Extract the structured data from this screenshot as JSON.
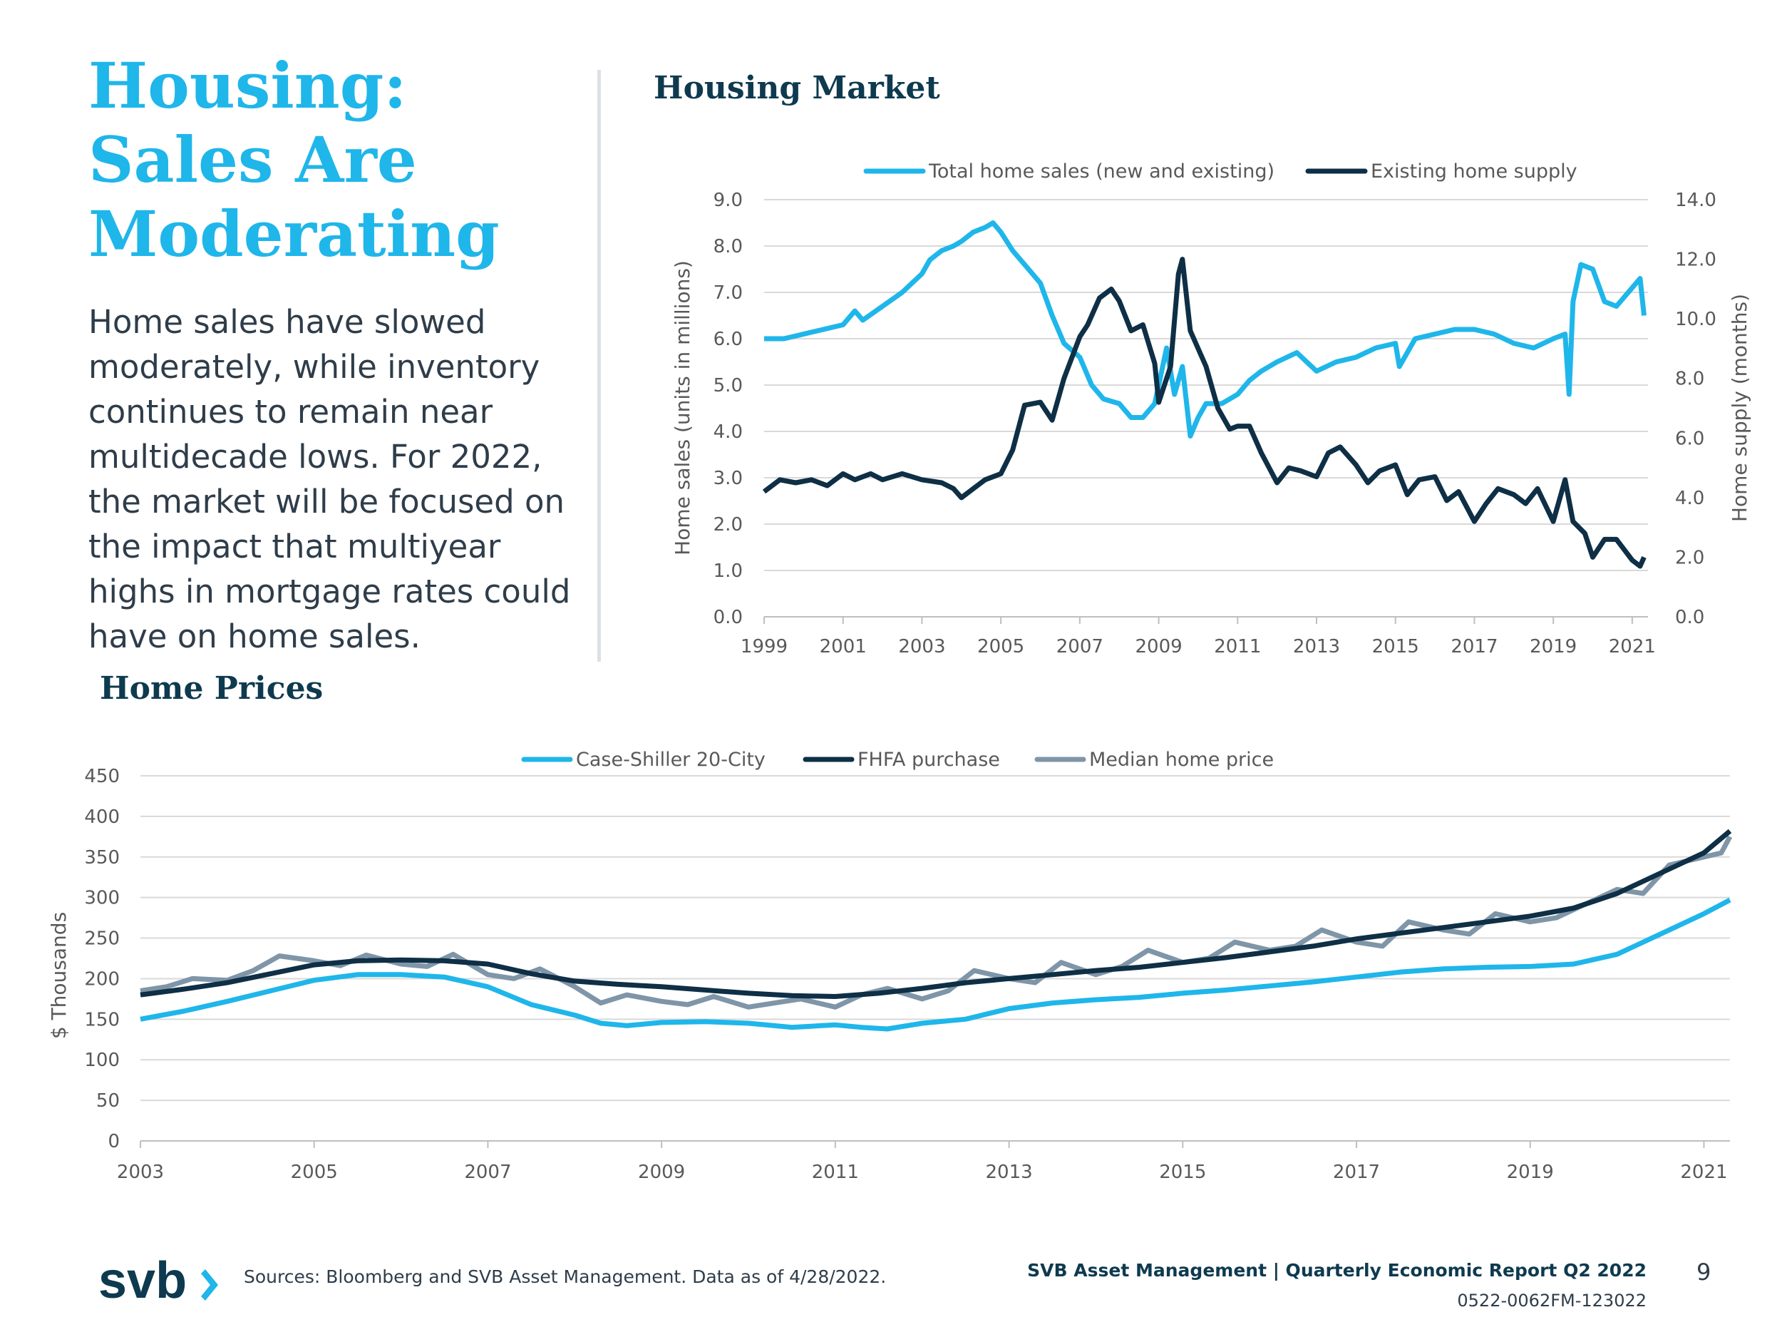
{
  "headline": {
    "line1": "Housing:",
    "line2": "Sales Are",
    "line3": "Moderating"
  },
  "body": "Home sales have slowed moderately, while inventory continues to remain near multidecade lows. For 2022, the market will be focused on the impact that multiyear highs in mortgage rates could have on home sales.",
  "housing_market_title": "Housing Market",
  "home_prices_title": "Home Prices",
  "footer": {
    "sources": "Sources: Bloomberg and SVB Asset Management. Data as of 4/28/2022.",
    "report": "SVB Asset Management | Quarterly Economic Report Q2 2022",
    "code": "0522-0062FM-123022",
    "page": "9",
    "logo_text": "svb"
  },
  "colors": {
    "light": "#1fb6ea",
    "dark": "#0e2f45",
    "gray": "#7f95a8",
    "grid": "#d9d9d9",
    "axis_text": "#595959"
  },
  "chart_data": [
    {
      "type": "line",
      "title": "Housing Market",
      "xlabel": "",
      "ylabel": "Home sales (units in millions)",
      "y2label": "Home supply (months)",
      "xlim": [
        1999,
        2021.4
      ],
      "ylim": [
        0,
        9
      ],
      "y2lim": [
        0,
        14
      ],
      "xticks": [
        "1999",
        "2001",
        "2003",
        "2005",
        "2007",
        "2009",
        "2011",
        "2013",
        "2015",
        "2017",
        "2019",
        "2021"
      ],
      "yticks": [
        "0.0",
        "1.0",
        "2.0",
        "3.0",
        "4.0",
        "5.0",
        "6.0",
        "7.0",
        "8.0",
        "9.0"
      ],
      "y2ticks": [
        "0.0",
        "2.0",
        "4.0",
        "6.0",
        "8.0",
        "10.0",
        "12.0",
        "14.0"
      ],
      "legend_position": "top",
      "series": [
        {
          "name": "Total home sales (new and existing)",
          "axis": "left",
          "color": "#1fb6ea",
          "x": [
            1999,
            1999.5,
            2000,
            2000.5,
            2001,
            2001.3,
            2001.5,
            2002,
            2002.5,
            2003,
            2003.2,
            2003.5,
            2003.8,
            2004,
            2004.3,
            2004.6,
            2004.8,
            2005,
            2005.3,
            2005.6,
            2006,
            2006.3,
            2006.6,
            2007,
            2007.3,
            2007.6,
            2008,
            2008.3,
            2008.6,
            2008.9,
            2009,
            2009.2,
            2009.4,
            2009.6,
            2009.8,
            2010,
            2010.2,
            2010.4,
            2010.6,
            2011,
            2011.3,
            2011.6,
            2012,
            2012.5,
            2013,
            2013.5,
            2014,
            2014.5,
            2015,
            2015.1,
            2015.5,
            2016,
            2016.5,
            2017,
            2017.5,
            2018,
            2018.5,
            2019,
            2019.3,
            2019.4,
            2019.5,
            2019.7,
            2020,
            2020.3,
            2020.6,
            2021,
            2021.2,
            2021.3
          ],
          "values": [
            6.0,
            6.0,
            6.1,
            6.2,
            6.3,
            6.6,
            6.4,
            6.7,
            7.0,
            7.4,
            7.7,
            7.9,
            8.0,
            8.1,
            8.3,
            8.4,
            8.5,
            8.3,
            7.9,
            7.6,
            7.2,
            6.5,
            5.9,
            5.6,
            5.0,
            4.7,
            4.6,
            4.3,
            4.3,
            4.6,
            5.0,
            5.8,
            4.8,
            5.4,
            3.9,
            4.3,
            4.6,
            4.6,
            4.6,
            4.8,
            5.1,
            5.3,
            5.5,
            5.7,
            5.3,
            5.5,
            5.6,
            5.8,
            5.9,
            5.4,
            6.0,
            6.1,
            6.2,
            6.2,
            6.1,
            5.9,
            5.8,
            6.0,
            6.1,
            4.8,
            6.8,
            7.6,
            7.5,
            6.8,
            6.7,
            7.1,
            7.3,
            6.5
          ]
        },
        {
          "name": "Existing home supply",
          "axis": "right",
          "color": "#0e2f45",
          "x": [
            1999,
            1999.4,
            1999.8,
            2000.2,
            2000.6,
            2001,
            2001.3,
            2001.7,
            2002,
            2002.5,
            2003,
            2003.5,
            2003.8,
            2004,
            2004.3,
            2004.6,
            2005,
            2005.3,
            2005.6,
            2006,
            2006.3,
            2006.6,
            2007,
            2007.2,
            2007.5,
            2007.8,
            2008,
            2008.3,
            2008.6,
            2008.9,
            2009,
            2009.3,
            2009.5,
            2009.6,
            2009.8,
            2010,
            2010.2,
            2010.5,
            2010.8,
            2011,
            2011.3,
            2011.6,
            2012,
            2012.3,
            2012.6,
            2013,
            2013.3,
            2013.6,
            2014,
            2014.3,
            2014.6,
            2015,
            2015.3,
            2015.6,
            2016,
            2016.3,
            2016.6,
            2017,
            2017.3,
            2017.6,
            2018,
            2018.3,
            2018.6,
            2019,
            2019.3,
            2019.5,
            2019.8,
            2020,
            2020.3,
            2020.6,
            2021,
            2021.2,
            2021.3
          ],
          "values": [
            4.2,
            4.6,
            4.5,
            4.6,
            4.4,
            4.8,
            4.6,
            4.8,
            4.6,
            4.8,
            4.6,
            4.5,
            4.3,
            4.0,
            4.3,
            4.6,
            4.8,
            5.6,
            7.1,
            7.2,
            6.6,
            8.0,
            9.4,
            9.8,
            10.7,
            11.0,
            10.6,
            9.6,
            9.8,
            8.5,
            7.2,
            8.4,
            11.5,
            12.0,
            9.6,
            9.0,
            8.4,
            7.0,
            6.3,
            6.4,
            6.4,
            5.5,
            4.5,
            5.0,
            4.9,
            4.7,
            5.5,
            5.7,
            5.1,
            4.5,
            4.9,
            5.1,
            4.1,
            4.6,
            4.7,
            3.9,
            4.2,
            3.2,
            3.8,
            4.3,
            4.1,
            3.8,
            4.3,
            3.2,
            4.6,
            3.2,
            2.8,
            2.0,
            2.6,
            2.6,
            1.9,
            1.7,
            2.0
          ]
        }
      ]
    },
    {
      "type": "line",
      "title": "Home Prices",
      "xlabel": "",
      "ylabel": "$ Thousands",
      "xlim": [
        2003,
        2021.3
      ],
      "ylim": [
        0,
        450
      ],
      "xticks": [
        "2003",
        "2005",
        "2007",
        "2009",
        "2011",
        "2013",
        "2015",
        "2017",
        "2019",
        "2021"
      ],
      "yticks": [
        "0",
        "50",
        "100",
        "150",
        "200",
        "250",
        "300",
        "350",
        "400",
        "450"
      ],
      "legend_position": "top",
      "series": [
        {
          "name": "Case-Shiller 20-City",
          "color": "#1fb6ea",
          "x": [
            2003,
            2003.5,
            2004,
            2004.5,
            2005,
            2005.5,
            2006,
            2006.5,
            2007,
            2007.5,
            2008,
            2008.3,
            2008.6,
            2009,
            2009.5,
            2010,
            2010.5,
            2011,
            2011.3,
            2011.6,
            2012,
            2012.5,
            2013,
            2013.5,
            2014,
            2014.5,
            2015,
            2015.5,
            2016,
            2016.5,
            2017,
            2017.5,
            2018,
            2018.5,
            2019,
            2019.5,
            2020,
            2020.5,
            2021,
            2021.3
          ],
          "values": [
            150,
            160,
            172,
            185,
            198,
            205,
            205,
            202,
            190,
            168,
            155,
            145,
            142,
            146,
            147,
            145,
            140,
            143,
            140,
            138,
            145,
            150,
            163,
            170,
            174,
            177,
            182,
            186,
            191,
            196,
            202,
            208,
            212,
            214,
            215,
            218,
            230,
            255,
            280,
            297
          ]
        },
        {
          "name": "FHFA purchase",
          "color": "#0e2f45",
          "x": [
            2003,
            2003.5,
            2004,
            2004.5,
            2005,
            2005.5,
            2006,
            2006.5,
            2007,
            2007.5,
            2008,
            2008.5,
            2009,
            2009.5,
            2010,
            2010.5,
            2011,
            2011.5,
            2012,
            2012.5,
            2013,
            2013.5,
            2014,
            2014.5,
            2015,
            2015.5,
            2016,
            2016.5,
            2017,
            2017.5,
            2018,
            2018.5,
            2019,
            2019.5,
            2020,
            2020.5,
            2021,
            2021.3
          ],
          "values": [
            180,
            187,
            195,
            206,
            217,
            222,
            223,
            222,
            218,
            206,
            197,
            193,
            190,
            186,
            182,
            179,
            178,
            182,
            188,
            195,
            200,
            205,
            210,
            214,
            220,
            226,
            233,
            240,
            249,
            256,
            263,
            270,
            277,
            287,
            305,
            330,
            355,
            382
          ]
        },
        {
          "name": "Median home price",
          "color": "#7f95a8",
          "x": [
            2003,
            2003.3,
            2003.6,
            2004,
            2004.3,
            2004.6,
            2005,
            2005.3,
            2005.6,
            2006,
            2006.3,
            2006.6,
            2007,
            2007.3,
            2007.6,
            2008,
            2008.3,
            2008.6,
            2009,
            2009.3,
            2009.6,
            2010,
            2010.3,
            2010.6,
            2011,
            2011.3,
            2011.6,
            2012,
            2012.3,
            2012.6,
            2013,
            2013.3,
            2013.6,
            2014,
            2014.3,
            2014.6,
            2015,
            2015.3,
            2015.6,
            2016,
            2016.3,
            2016.6,
            2017,
            2017.3,
            2017.6,
            2018,
            2018.3,
            2018.6,
            2019,
            2019.3,
            2019.6,
            2020,
            2020.3,
            2020.6,
            2021,
            2021.2,
            2021.3
          ],
          "values": [
            185,
            190,
            200,
            198,
            210,
            228,
            222,
            216,
            229,
            218,
            215,
            230,
            205,
            200,
            212,
            190,
            170,
            180,
            172,
            168,
            178,
            165,
            170,
            175,
            165,
            180,
            188,
            175,
            185,
            210,
            200,
            195,
            220,
            205,
            215,
            235,
            220,
            225,
            245,
            235,
            240,
            260,
            245,
            240,
            270,
            260,
            255,
            280,
            270,
            275,
            290,
            310,
            305,
            340,
            350,
            355,
            375
          ]
        }
      ]
    }
  ]
}
